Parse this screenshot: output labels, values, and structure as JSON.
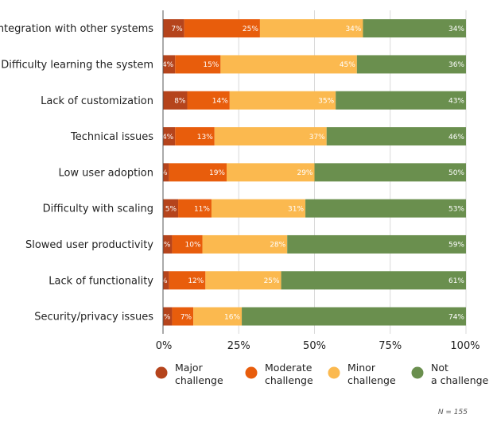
{
  "chart_data": {
    "type": "bar",
    "orientation": "horizontal",
    "stacked": true,
    "categories": [
      "Integration with other systems",
      "Difficulty learning the system",
      "Lack of customization",
      "Technical issues",
      "Low user adoption",
      "Difficulty with scaling",
      "Slowed user productivity",
      "Lack of functionality",
      "Security/privacy issues"
    ],
    "series": [
      {
        "name": "Major challenge",
        "color": "#b5441c",
        "values": [
          7,
          4,
          8,
          4,
          2,
          5,
          3,
          2,
          3
        ]
      },
      {
        "name": "Moderate challenge",
        "color": "#e85d0c",
        "values": [
          25,
          15,
          14,
          13,
          19,
          11,
          10,
          12,
          7
        ]
      },
      {
        "name": "Minor challenge",
        "color": "#fbb94f",
        "values": [
          34,
          45,
          35,
          37,
          29,
          31,
          28,
          25,
          16
        ]
      },
      {
        "name": "Not a challenge",
        "color": "#6a8f4e",
        "values": [
          34,
          36,
          43,
          46,
          50,
          53,
          59,
          61,
          74
        ]
      }
    ],
    "xticks": [
      "0%",
      "25%",
      "50%",
      "75%",
      "100%"
    ],
    "xlim": [
      0,
      100
    ],
    "value_suffix": "%",
    "legend_position": "bottom",
    "grid": true,
    "note": "N = 155"
  }
}
